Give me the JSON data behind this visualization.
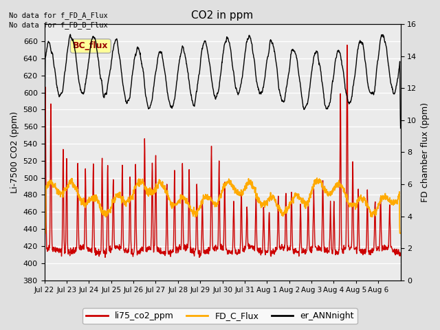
{
  "title": "CO2 in ppm",
  "ylabel_left": "Li-7500 CO2 (ppm)",
  "ylabel_right": "FD chamber flux (ppm)",
  "ylim_left": [
    380,
    680
  ],
  "ylim_right": [
    0,
    16
  ],
  "yticks_left": [
    380,
    400,
    420,
    440,
    460,
    480,
    500,
    520,
    540,
    560,
    580,
    600,
    620,
    640,
    660
  ],
  "yticks_right": [
    0,
    2,
    4,
    6,
    8,
    10,
    12,
    14,
    16
  ],
  "text_nodata1": "No data for f_FD_A_Flux",
  "text_nodata2": "No data for f_FD_B_Flux",
  "legend_entries": [
    "li75_co2_ppm",
    "FD_C_Flux",
    "er_ANNnight"
  ],
  "legend_colors": [
    "#cc0000",
    "#ffaa00",
    "#000000"
  ],
  "bc_flux_label": "BC_flux",
  "bc_flux_box_color": "#ffff99",
  "bc_flux_text_color": "#990000",
  "bc_flux_edge_color": "#aaaaaa",
  "background_color": "#e0e0e0",
  "axes_bg_color": "#ebebeb",
  "grid_color": "#ffffff",
  "n_days": 16,
  "date_labels": [
    "Jul 22",
    "Jul 23",
    "Jul 24",
    "Jul 25",
    "Jul 26",
    "Jul 27",
    "Jul 28",
    "Jul 29",
    "Jul 30",
    "Jul 31",
    "Aug 1",
    "Aug 2",
    "Aug 3",
    "Aug 4",
    "Aug 5",
    "Aug 6"
  ],
  "seed": 42
}
